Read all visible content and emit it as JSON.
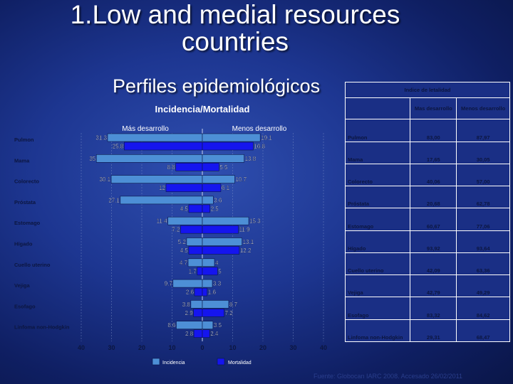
{
  "slide": {
    "title": "1.Low and medial resources countries",
    "subtitle": "Perfiles epidemiológicos",
    "source": "Fuente: Globocan IARC 2008. Accesado 26/02/2011"
  },
  "colors": {
    "incidencia": "#4d8fd6",
    "mortalidad": "#1515ee",
    "label_dark": "#0c1640",
    "background": "#1d3691"
  },
  "chart_data": {
    "type": "bar",
    "orientation": "horizontal-butterfly",
    "title": "Incidencia/Mortalidad",
    "group_labels": [
      "Más desarrollo",
      "Menos desarrollo"
    ],
    "categories": [
      "Pulmon",
      "Mama",
      "Colorecto",
      "Próstata",
      "Estomago",
      "Hígado",
      "Cuello uterino",
      "Vejiga",
      "Esofago",
      "Linfoma non-Hodgkin"
    ],
    "series": [
      {
        "name": "Incidencia",
        "side": "Más desarrollo",
        "values": [
          31.3,
          35,
          30.1,
          27.1,
          11.4,
          5.2,
          4.7,
          9.7,
          3.8,
          8.6
        ]
      },
      {
        "name": "Mortalidad",
        "side": "Más desarrollo",
        "values": [
          25.8,
          8.8,
          12,
          4.5,
          7.2,
          4.5,
          1.7,
          2.6,
          2.9,
          2.8
        ]
      },
      {
        "name": "Incidencia",
        "side": "Menos desarrollo",
        "values": [
          19.1,
          13.8,
          10.7,
          3.6,
          15.3,
          13.1,
          4,
          3.3,
          8.7,
          3.5
        ]
      },
      {
        "name": "Mortalidad",
        "side": "Menos desarrollo",
        "values": [
          16.8,
          5.5,
          6.1,
          2.5,
          11.9,
          12.2,
          5,
          1.6,
          7.2,
          2.4
        ]
      }
    ],
    "xticks": [
      "40",
      "30",
      "20",
      "10",
      "0",
      "10",
      "20",
      "30",
      "40"
    ],
    "xlim": [
      -40,
      40
    ],
    "legend": [
      "Incidencia",
      "Mortalidad"
    ],
    "legend_position": "bottom",
    "grid": true
  },
  "table": {
    "title": "Indice de letalidad",
    "columns": [
      "Mas desarrollo",
      "Menos desarrollo"
    ],
    "rows": [
      {
        "label": "Pulmon",
        "values": [
          "83,00",
          "87,97"
        ]
      },
      {
        "label": "Mama",
        "values": [
          "17,65",
          "30,05"
        ]
      },
      {
        "label": "Colorecto",
        "values": [
          "40,06",
          "57,00"
        ]
      },
      {
        "label": "Próstata",
        "values": [
          "20,68",
          "62,78"
        ]
      },
      {
        "label": "Estomago",
        "values": [
          "60,67",
          "77,06"
        ]
      },
      {
        "label": "Hígado",
        "values": [
          "93,92",
          "93,64"
        ]
      },
      {
        "label": "Cuello uterino",
        "values": [
          "42,09",
          "63,36"
        ]
      },
      {
        "label": "Vejiga",
        "values": [
          "42,79",
          "49,29"
        ]
      },
      {
        "label": "Esofago",
        "values": [
          "83,32",
          "84,62"
        ]
      },
      {
        "label": "Linfoma non-Hodgkin",
        "values": [
          "29,31",
          "68,47"
        ]
      }
    ]
  }
}
